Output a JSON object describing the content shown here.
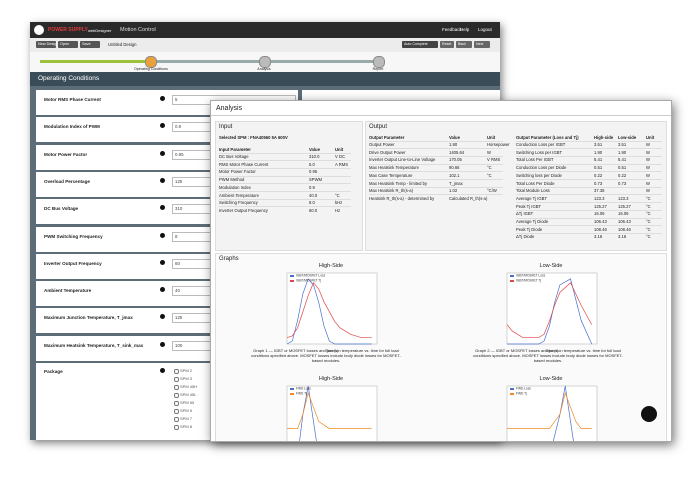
{
  "header": {
    "brand": "POWER SUPPLY",
    "product": "webDesigner",
    "app": "Motion Control",
    "links": [
      "Feedback",
      "Help",
      "Logout"
    ]
  },
  "toolbar": {
    "buttons": [
      "New Design",
      "Open",
      "Save"
    ],
    "design": "Untitled Design",
    "actions": [
      "Auto Complete",
      "Reset",
      "Back",
      "Next"
    ]
  },
  "steps": [
    "Operating Conditions",
    "Analysis",
    "Report"
  ],
  "operating_conditions": {
    "title": "Operating Conditions",
    "fields": [
      {
        "label": "Motor RMS Phase Current",
        "value": "5"
      },
      {
        "label": "Modulation Index of PWM",
        "value": "0.9"
      },
      {
        "label": "Motor Power Factor",
        "value": "0.95"
      },
      {
        "label": "Overload Percentage",
        "value": "125"
      },
      {
        "label": "DC Bus Voltage",
        "value": "310"
      },
      {
        "label": "PWM Switching Frequency",
        "value": "8"
      },
      {
        "label": "Inverter Output Frequency",
        "value": "60"
      },
      {
        "label": "Ambient Temperature",
        "value": "40"
      },
      {
        "label": "Maximum Junction Temperature, T_jmax",
        "value": "125"
      },
      {
        "label": "Maximum Heatsink Temperature, T_sink_max",
        "value": "100"
      }
    ],
    "package": {
      "label": "Package",
      "options": [
        "SPM 2",
        "SPM 3",
        "SPM 45H",
        "SPM 45L",
        "SPM 55",
        "SPM 5",
        "SPM 7",
        "SPM 8"
      ]
    }
  },
  "analysis": {
    "title": "Analysis",
    "input": {
      "title": "Input",
      "selected": "Selected SPM : FNA40560 5A 600V",
      "header": [
        "Input Parameter",
        "Value",
        "Unit"
      ],
      "rows": [
        [
          "DC Bus Voltage",
          "310.0",
          "V DC"
        ],
        [
          "RMS Motor Phase Current",
          "5.0",
          "A RMS"
        ],
        [
          "Motor Power Factor",
          "0.95",
          ""
        ],
        [
          "PWM Method",
          "SPWM",
          ""
        ],
        [
          "Modulation Index",
          "0.9",
          ""
        ],
        [
          "Ambient Temperature",
          "40.0",
          "°C"
        ],
        [
          "Switching Frequency",
          "8.0",
          "kHz"
        ],
        [
          "Inverter Output Frequency",
          "60.0",
          "Hz"
        ]
      ]
    },
    "output": {
      "title": "Output",
      "header": [
        "Output Parameter",
        "Value",
        "Unit"
      ],
      "rows": [
        [
          "Output Power",
          "1.90",
          "Horsepower"
        ],
        [
          "Drive Output Power",
          "1405.64",
          "W"
        ],
        [
          "Inverter Output Line-to-Line Voltage",
          "170.05",
          "V RMS"
        ],
        [
          "Max Heatsink Temperature",
          "90.66",
          "°C"
        ],
        [
          "Max Case Temperature",
          "102.1",
          "°C"
        ],
        [
          "Max Heatsink Temp - limited by",
          "T_jmax",
          ""
        ],
        [
          "Max Heatsink R_th(s-a)",
          "1.02",
          "°C/W"
        ],
        [
          "Heatsink R_th(s-a) - determined by",
          "Calculated R_th(s-a)",
          ""
        ]
      ]
    },
    "loss": {
      "header": [
        "Output Parameter (Loss and Tj)",
        "High-side",
        "Low-side",
        "Unit"
      ],
      "rows": [
        [
          "Conduction Loss per IGBT",
          "3.51",
          "3.51",
          "W"
        ],
        [
          "Switching Loss per IGBT",
          "1.90",
          "1.90",
          "W"
        ],
        [
          "Total Loss Per IGBT",
          "5.41",
          "5.41",
          "W"
        ],
        [
          "Conduction Loss per Diode",
          "0.51",
          "0.51",
          "W"
        ],
        [
          "Switching loss per Diode",
          "0.22",
          "0.22",
          "W"
        ],
        [
          "Total Loss Per Diode",
          "0.73",
          "0.73",
          "W"
        ],
        [
          "Total Module Loss",
          "37.36",
          "",
          "W"
        ],
        [
          "Average Tj IGBT",
          "123.3",
          "123.3",
          "°C"
        ],
        [
          "Peak Tj IGBT",
          "125.27",
          "125.27",
          "°C"
        ],
        [
          "ΔTj IGBT",
          "16.06",
          "16.06",
          "°C"
        ],
        [
          "Average Tj Diode",
          "106.43",
          "106.43",
          "°C"
        ],
        [
          "Peak Tj Diode",
          "108.46",
          "108.46",
          "°C"
        ],
        [
          "ΔTj Diode",
          "3.16",
          "3.16",
          "°C"
        ]
      ]
    },
    "graphs": {
      "title": "Graphs",
      "charts": [
        {
          "title": "High-Side",
          "xlabel": "Time (s)",
          "caption": "Graph 1 — IGBT or MOSFET losses and junction temperature vs. time for full load conditions specified above. MOSFET losses include body diode losses for MOSFET-based modules.",
          "x": [
            0,
            0.001,
            0.002,
            0.003,
            0.004,
            0.005,
            0.006,
            0.007,
            0.008,
            0.009,
            0.01,
            0.012,
            0.014,
            0.016
          ],
          "xlim": [
            0,
            0.017
          ],
          "ylim": [
            0,
            12
          ],
          "y2lim": [
            106,
            128
          ],
          "series": [
            {
              "name": "IGBT/MOSFET Loss",
              "color": "#4a6fd0",
              "values": [
                0,
                0.5,
                4,
                8.5,
                11,
                10,
                7,
                3,
                0.5,
                0,
                0,
                0,
                0,
                0
              ]
            },
            {
              "name": "IGBT/MOSFET Tj",
              "color": "#e0474c",
              "axis": "y2",
              "values": [
                108,
                108.5,
                111,
                116,
                121,
                125,
                123,
                119,
                116,
                113,
                111,
                109,
                108,
                108
              ]
            }
          ]
        },
        {
          "title": "Low-Side",
          "xlabel": "Time (s)",
          "caption": "Graph 2 — IGBT or MOSFET losses and junction temperature vs. time for full load conditions specified above. MOSFET losses include body diode losses for MOSFET-based modules.",
          "x": [
            0,
            0.001,
            0.002,
            0.003,
            0.004,
            0.005,
            0.006,
            0.007,
            0.008,
            0.009,
            0.01,
            0.012,
            0.014,
            0.016
          ],
          "xlim": [
            0,
            0.017
          ],
          "ylim": [
            0,
            12
          ],
          "y2lim": [
            106,
            128
          ],
          "series": [
            {
              "name": "IGBT/MOSFET Loss",
              "color": "#4a6fd0",
              "values": [
                0,
                0,
                0,
                0,
                0,
                0,
                0,
                0.5,
                3,
                7,
                10,
                11,
                4,
                0
              ]
            },
            {
              "name": "IGBT/MOSFET Tj",
              "color": "#e0474c",
              "axis": "y2",
              "values": [
                112,
                110,
                109,
                108,
                108,
                108,
                108,
                109,
                113,
                118,
                122,
                125,
                118,
                112
              ]
            }
          ]
        },
        {
          "title": "High-Side",
          "x": [
            0,
            0.002,
            0.003,
            0.004,
            0.005,
            0.006,
            0.008,
            0.012,
            0.016
          ],
          "xlim": [
            0,
            0.017
          ],
          "ylim": [
            0,
            1
          ],
          "y2lim": [
            100,
            110
          ],
          "series": [
            {
              "name": "FWD Loss",
              "color": "#4a6fd0",
              "values": [
                0,
                0,
                0.6,
                1,
                0.5,
                0,
                0,
                0,
                0
              ]
            },
            {
              "name": "FWD Tj",
              "color": "#f08a24",
              "axis": "y2",
              "values": [
                104,
                104,
                106,
                109,
                107,
                105,
                104,
                104,
                104
              ]
            }
          ]
        },
        {
          "title": "Low-Side",
          "x": [
            0,
            0.004,
            0.008,
            0.01,
            0.011,
            0.012,
            0.013,
            0.014,
            0.016
          ],
          "xlim": [
            0,
            0.017
          ],
          "ylim": [
            0,
            1
          ],
          "y2lim": [
            100,
            110
          ],
          "series": [
            {
              "name": "FWD Loss",
              "color": "#4a6fd0",
              "values": [
                0,
                0,
                0,
                0.6,
                1,
                0.5,
                0,
                0,
                0
              ]
            },
            {
              "name": "FWD Tj",
              "color": "#f08a24",
              "axis": "y2",
              "values": [
                104,
                104,
                104,
                106,
                109,
                107,
                105,
                104,
                104
              ]
            }
          ]
        }
      ]
    }
  }
}
